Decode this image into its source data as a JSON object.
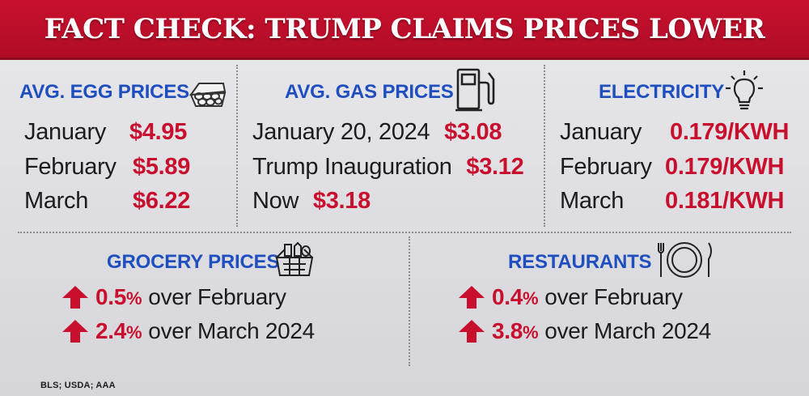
{
  "banner": {
    "title": "FACT CHECK: TRUMP CLAIMS PRICES LOWER"
  },
  "colors": {
    "banner_red": "#c8102e",
    "title_blue": "#1f4fbf",
    "value_red": "#c8102e",
    "background": "#e4e4e8"
  },
  "eggs": {
    "title": "AVG. EGG PRICES",
    "icon": "egg-carton-icon",
    "rows": [
      {
        "label": "January",
        "value": "$4.95"
      },
      {
        "label": "February",
        "value": "$5.89"
      },
      {
        "label": "March",
        "value": "$6.22"
      }
    ]
  },
  "gas": {
    "title": "AVG. GAS PRICES",
    "icon": "gas-pump-icon",
    "rows": [
      {
        "label": "January 20, 2024",
        "value": "$3.08"
      },
      {
        "label": "Trump Inauguration",
        "value": "$3.12"
      },
      {
        "label": "Now",
        "value": "$3.18"
      }
    ]
  },
  "electricity": {
    "title": "ELECTRICITY",
    "icon": "light-bulb-icon",
    "rows": [
      {
        "label": "January",
        "value": "0.179/KWH"
      },
      {
        "label": "February",
        "value": "0.179/KWH"
      },
      {
        "label": "March",
        "value": "0.181/KWH"
      }
    ]
  },
  "grocery": {
    "title": "GROCERY PRICES",
    "icon": "grocery-basket-icon",
    "rows": [
      {
        "number": "0.5",
        "unit": "%",
        "text": "over February"
      },
      {
        "number": "2.4",
        "unit": "%",
        "text": "over March 2024"
      }
    ]
  },
  "restaurants": {
    "title": "RESTAURANTS",
    "icon": "plate-fork-knife-icon",
    "rows": [
      {
        "number": "0.4",
        "unit": "%",
        "text": "over February"
      },
      {
        "number": "3.8",
        "unit": "%",
        "text": "over March 2024"
      }
    ]
  },
  "source": "BLS; USDA; AAA"
}
